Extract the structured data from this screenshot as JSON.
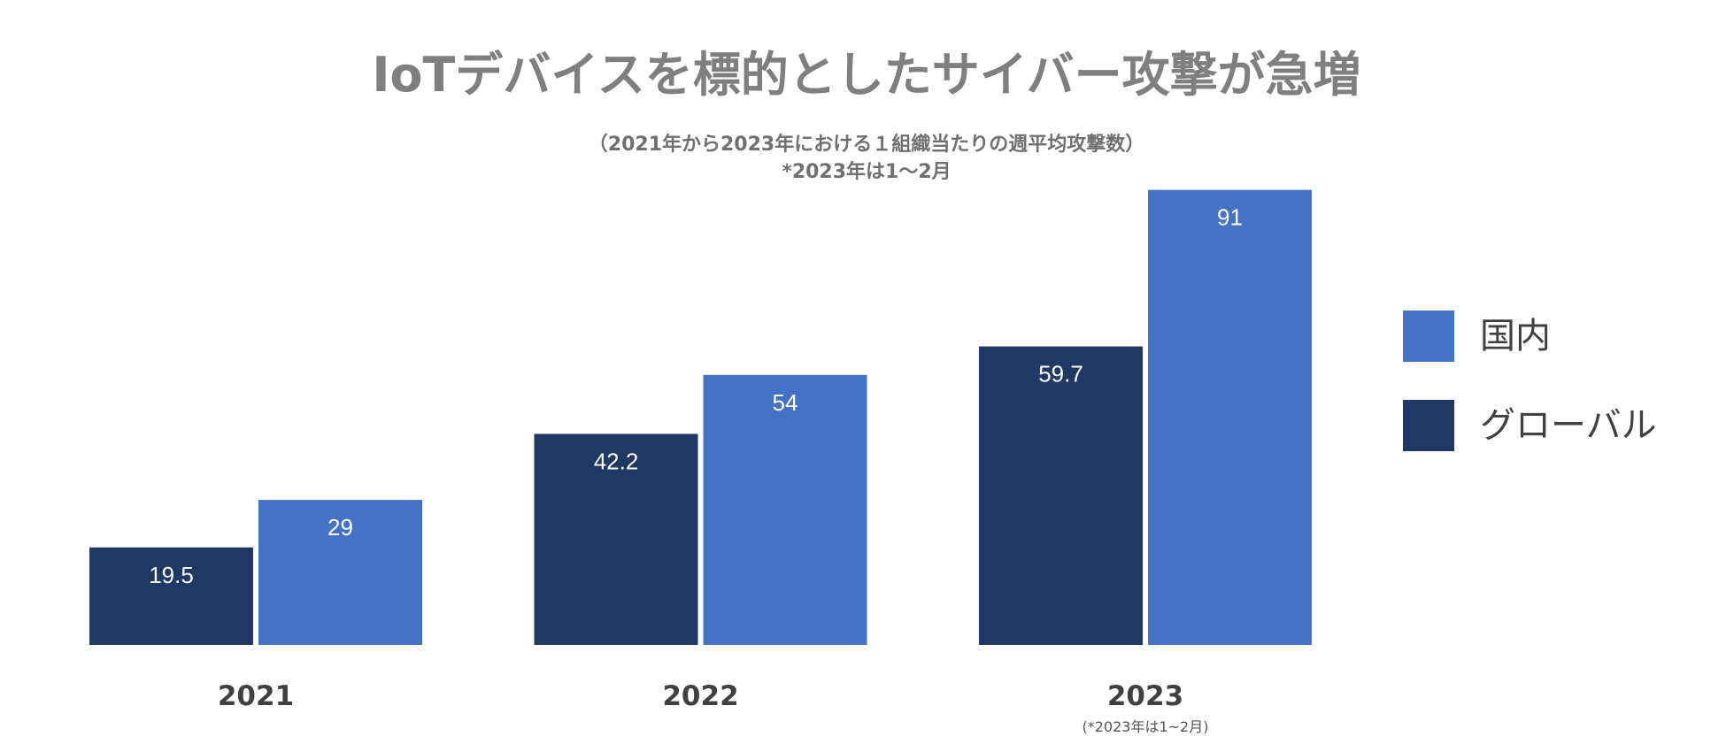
{
  "chart_data": {
    "type": "bar",
    "title": "IoTデバイスを標的としたサイバー攻撃が急増",
    "subtitle": "（2021年から2023年における１組織当たりの週平均攻撃数）",
    "subtitle_note": "*2023年は1～2月",
    "xlabel": "",
    "ylabel": "",
    "grid": false,
    "ylim": [
      0,
      92
    ],
    "categories": [
      "2021",
      "2022",
      "2023"
    ],
    "category_notes": [
      null,
      null,
      "(*2023年は1~2月)"
    ],
    "series": [
      {
        "name": "グローバル",
        "values": [
          19.5,
          42.2,
          59.7
        ],
        "color": "#203864"
      },
      {
        "name": "国内",
        "values": [
          29,
          54,
          91
        ],
        "color": "#4472c4"
      }
    ],
    "legend_position": "right"
  }
}
